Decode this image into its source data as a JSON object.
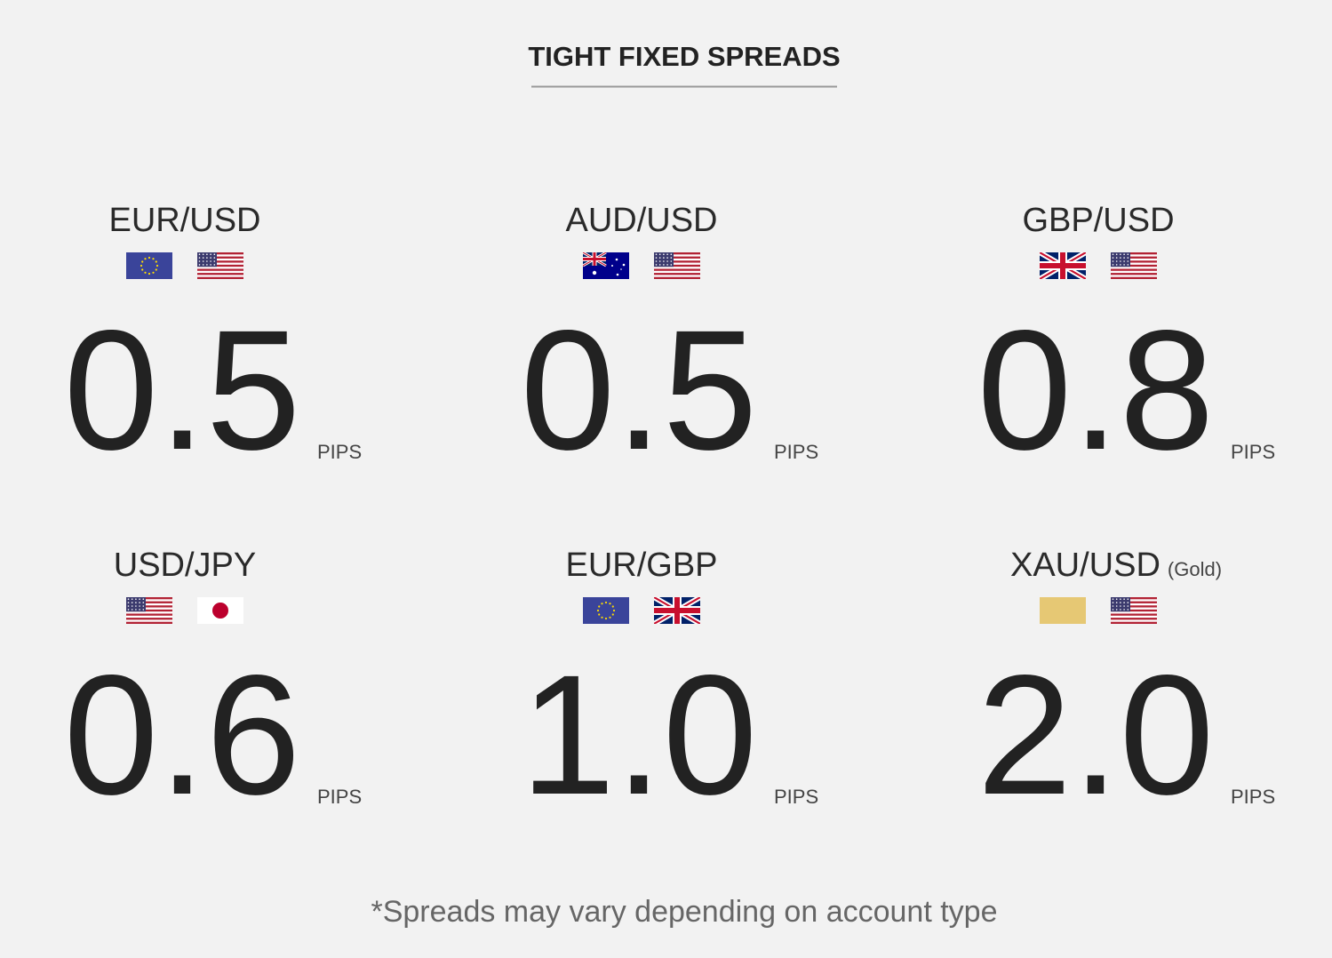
{
  "header": {
    "title": "TIGHT FIXED SPREADS"
  },
  "spreads": [
    {
      "pair": "EUR/USD",
      "value": "0.5",
      "unit": "PIPS"
    },
    {
      "pair": "AUD/USD",
      "value": "0.5",
      "unit": "PIPS"
    },
    {
      "pair": "GBP/USD",
      "value": "0.8",
      "unit": "PIPS"
    },
    {
      "pair": "USD/JPY",
      "value": "0.6",
      "unit": "PIPS"
    },
    {
      "pair": "EUR/GBP",
      "value": "1.0",
      "unit": "PIPS"
    },
    {
      "pair": "XAU/USD",
      "note": "(Gold)",
      "value": "2.0",
      "unit": "PIPS"
    }
  ],
  "footnote": "*Spreads may vary depending on account type"
}
